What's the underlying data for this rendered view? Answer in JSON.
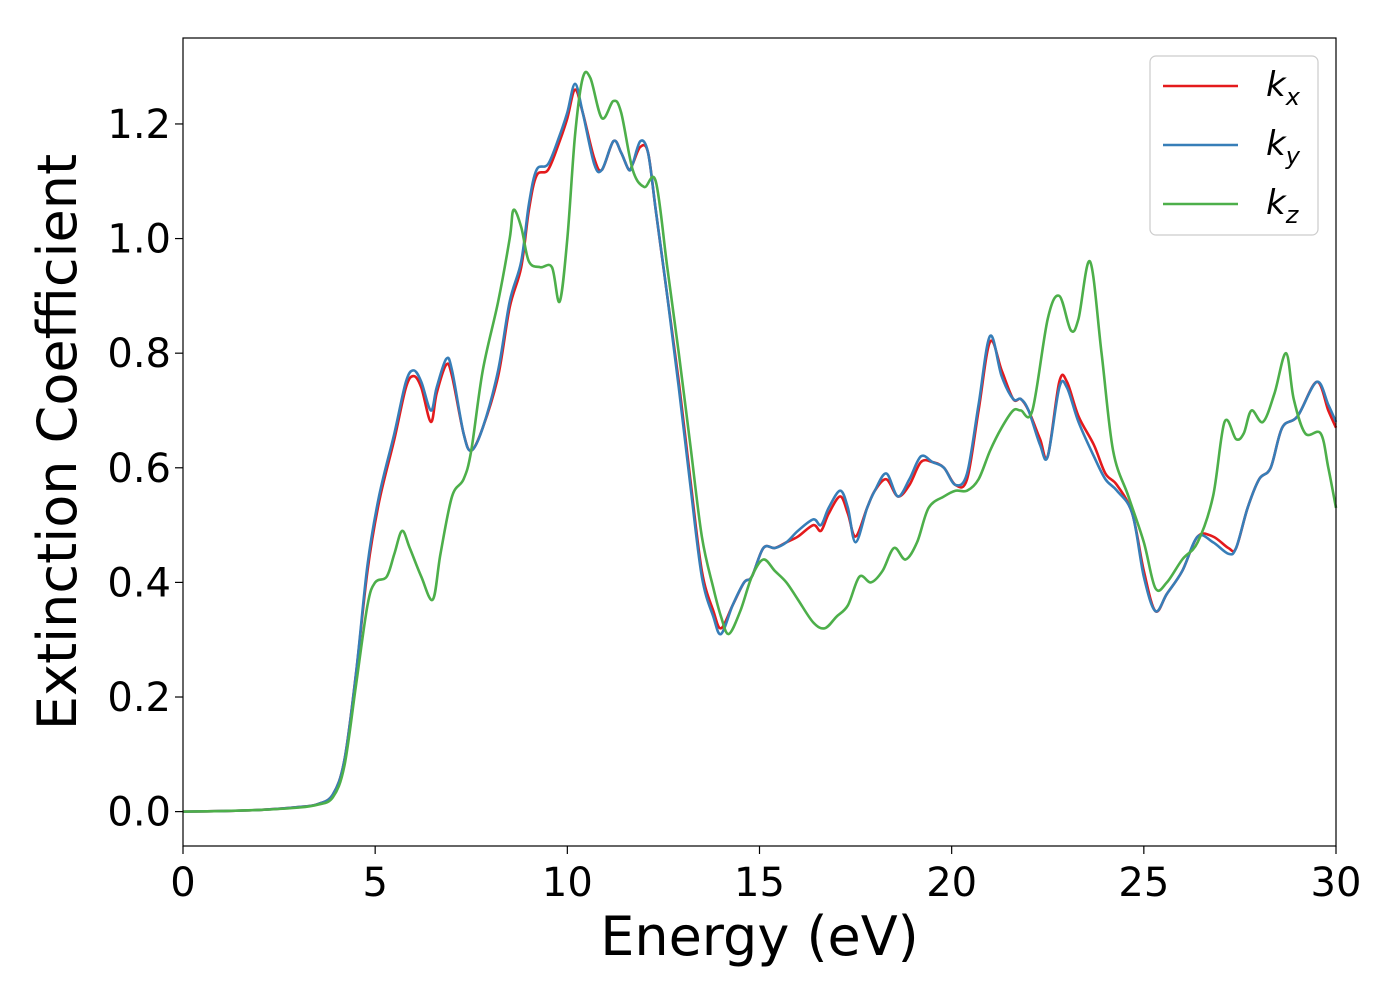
{
  "chart_data": {
    "type": "line",
    "xlabel": "Energy (eV)",
    "ylabel": "Extinction Coefficient",
    "xlim": [
      0,
      30
    ],
    "ylim": [
      -0.06,
      1.35
    ],
    "xticks": [
      0,
      5,
      10,
      15,
      20,
      25,
      30
    ],
    "yticks": [
      0.0,
      0.2,
      0.4,
      0.6,
      0.8,
      1.0,
      1.2
    ],
    "grid": false,
    "legend_position": "top-right",
    "series": [
      {
        "name": "k_x",
        "label_base": "k",
        "label_sub": "x",
        "color": "#e41a1c",
        "points": [
          [
            0,
            0.0
          ],
          [
            1,
            0.001
          ],
          [
            2,
            0.003
          ],
          [
            3,
            0.008
          ],
          [
            3.5,
            0.013
          ],
          [
            3.9,
            0.03
          ],
          [
            4.2,
            0.09
          ],
          [
            4.5,
            0.24
          ],
          [
            4.8,
            0.42
          ],
          [
            5.1,
            0.54
          ],
          [
            5.5,
            0.65
          ],
          [
            5.8,
            0.74
          ],
          [
            6.0,
            0.76
          ],
          [
            6.2,
            0.74
          ],
          [
            6.45,
            0.68
          ],
          [
            6.6,
            0.73
          ],
          [
            6.85,
            0.78
          ],
          [
            7.0,
            0.76
          ],
          [
            7.3,
            0.66
          ],
          [
            7.5,
            0.63
          ],
          [
            7.8,
            0.67
          ],
          [
            8.2,
            0.76
          ],
          [
            8.5,
            0.88
          ],
          [
            8.8,
            0.95
          ],
          [
            9.0,
            1.05
          ],
          [
            9.2,
            1.11
          ],
          [
            9.5,
            1.12
          ],
          [
            9.8,
            1.17
          ],
          [
            10.0,
            1.21
          ],
          [
            10.2,
            1.26
          ],
          [
            10.4,
            1.22
          ],
          [
            10.7,
            1.14
          ],
          [
            10.9,
            1.12
          ],
          [
            11.2,
            1.17
          ],
          [
            11.4,
            1.15
          ],
          [
            11.6,
            1.12
          ],
          [
            11.7,
            1.13
          ],
          [
            11.9,
            1.16
          ],
          [
            12.1,
            1.15
          ],
          [
            12.3,
            1.05
          ],
          [
            12.6,
            0.9
          ],
          [
            12.9,
            0.75
          ],
          [
            13.2,
            0.58
          ],
          [
            13.5,
            0.42
          ],
          [
            13.8,
            0.35
          ],
          [
            14.0,
            0.32
          ],
          [
            14.3,
            0.36
          ],
          [
            14.6,
            0.4
          ],
          [
            14.8,
            0.41
          ],
          [
            15.1,
            0.46
          ],
          [
            15.4,
            0.46
          ],
          [
            15.7,
            0.47
          ],
          [
            16.0,
            0.48
          ],
          [
            16.4,
            0.5
          ],
          [
            16.6,
            0.49
          ],
          [
            16.8,
            0.52
          ],
          [
            17.1,
            0.55
          ],
          [
            17.3,
            0.52
          ],
          [
            17.5,
            0.48
          ],
          [
            17.8,
            0.53
          ],
          [
            18.0,
            0.56
          ],
          [
            18.3,
            0.58
          ],
          [
            18.6,
            0.55
          ],
          [
            18.9,
            0.57
          ],
          [
            19.2,
            0.61
          ],
          [
            19.5,
            0.61
          ],
          [
            19.8,
            0.6
          ],
          [
            20.1,
            0.57
          ],
          [
            20.4,
            0.58
          ],
          [
            20.7,
            0.7
          ],
          [
            21.0,
            0.82
          ],
          [
            21.3,
            0.77
          ],
          [
            21.6,
            0.72
          ],
          [
            21.8,
            0.72
          ],
          [
            22.0,
            0.7
          ],
          [
            22.3,
            0.65
          ],
          [
            22.5,
            0.62
          ],
          [
            22.8,
            0.75
          ],
          [
            23.0,
            0.75
          ],
          [
            23.3,
            0.69
          ],
          [
            23.7,
            0.64
          ],
          [
            24.0,
            0.59
          ],
          [
            24.3,
            0.57
          ],
          [
            24.7,
            0.52
          ],
          [
            25.0,
            0.42
          ],
          [
            25.3,
            0.35
          ],
          [
            25.6,
            0.38
          ],
          [
            26.0,
            0.42
          ],
          [
            26.4,
            0.48
          ],
          [
            26.8,
            0.48
          ],
          [
            27.2,
            0.46
          ],
          [
            27.4,
            0.46
          ],
          [
            27.7,
            0.53
          ],
          [
            28.0,
            0.58
          ],
          [
            28.3,
            0.6
          ],
          [
            28.6,
            0.67
          ],
          [
            29.0,
            0.69
          ],
          [
            29.5,
            0.75
          ],
          [
            29.8,
            0.7
          ],
          [
            30.0,
            0.67
          ]
        ]
      },
      {
        "name": "k_y",
        "label_base": "k",
        "label_sub": "y",
        "color": "#377eb8",
        "points": [
          [
            0,
            0.0
          ],
          [
            1,
            0.001
          ],
          [
            2,
            0.003
          ],
          [
            3,
            0.008
          ],
          [
            3.5,
            0.013
          ],
          [
            3.9,
            0.03
          ],
          [
            4.2,
            0.09
          ],
          [
            4.5,
            0.24
          ],
          [
            4.8,
            0.43
          ],
          [
            5.1,
            0.55
          ],
          [
            5.5,
            0.66
          ],
          [
            5.8,
            0.75
          ],
          [
            6.0,
            0.77
          ],
          [
            6.2,
            0.75
          ],
          [
            6.45,
            0.7
          ],
          [
            6.6,
            0.74
          ],
          [
            6.85,
            0.79
          ],
          [
            7.0,
            0.77
          ],
          [
            7.3,
            0.66
          ],
          [
            7.5,
            0.63
          ],
          [
            7.8,
            0.67
          ],
          [
            8.2,
            0.77
          ],
          [
            8.5,
            0.89
          ],
          [
            8.8,
            0.96
          ],
          [
            9.0,
            1.06
          ],
          [
            9.2,
            1.12
          ],
          [
            9.5,
            1.13
          ],
          [
            9.8,
            1.18
          ],
          [
            10.0,
            1.22
          ],
          [
            10.2,
            1.27
          ],
          [
            10.4,
            1.22
          ],
          [
            10.7,
            1.13
          ],
          [
            10.9,
            1.12
          ],
          [
            11.2,
            1.17
          ],
          [
            11.4,
            1.15
          ],
          [
            11.6,
            1.12
          ],
          [
            11.7,
            1.13
          ],
          [
            11.9,
            1.17
          ],
          [
            12.1,
            1.15
          ],
          [
            12.3,
            1.05
          ],
          [
            12.6,
            0.9
          ],
          [
            12.9,
            0.74
          ],
          [
            13.2,
            0.57
          ],
          [
            13.5,
            0.41
          ],
          [
            13.8,
            0.34
          ],
          [
            14.0,
            0.31
          ],
          [
            14.3,
            0.36
          ],
          [
            14.6,
            0.4
          ],
          [
            14.8,
            0.41
          ],
          [
            15.1,
            0.46
          ],
          [
            15.4,
            0.46
          ],
          [
            15.7,
            0.47
          ],
          [
            16.0,
            0.49
          ],
          [
            16.4,
            0.51
          ],
          [
            16.6,
            0.5
          ],
          [
            16.8,
            0.53
          ],
          [
            17.1,
            0.56
          ],
          [
            17.3,
            0.53
          ],
          [
            17.5,
            0.47
          ],
          [
            17.8,
            0.53
          ],
          [
            18.0,
            0.56
          ],
          [
            18.3,
            0.59
          ],
          [
            18.6,
            0.55
          ],
          [
            18.9,
            0.58
          ],
          [
            19.2,
            0.62
          ],
          [
            19.5,
            0.61
          ],
          [
            19.8,
            0.6
          ],
          [
            20.1,
            0.57
          ],
          [
            20.4,
            0.59
          ],
          [
            20.7,
            0.71
          ],
          [
            21.0,
            0.83
          ],
          [
            21.3,
            0.76
          ],
          [
            21.6,
            0.72
          ],
          [
            21.8,
            0.72
          ],
          [
            22.0,
            0.7
          ],
          [
            22.3,
            0.64
          ],
          [
            22.5,
            0.62
          ],
          [
            22.8,
            0.74
          ],
          [
            23.0,
            0.74
          ],
          [
            23.3,
            0.68
          ],
          [
            23.7,
            0.62
          ],
          [
            24.0,
            0.58
          ],
          [
            24.3,
            0.56
          ],
          [
            24.7,
            0.52
          ],
          [
            25.0,
            0.41
          ],
          [
            25.3,
            0.35
          ],
          [
            25.6,
            0.38
          ],
          [
            26.0,
            0.42
          ],
          [
            26.4,
            0.48
          ],
          [
            26.8,
            0.47
          ],
          [
            27.2,
            0.45
          ],
          [
            27.4,
            0.46
          ],
          [
            27.7,
            0.53
          ],
          [
            28.0,
            0.58
          ],
          [
            28.3,
            0.6
          ],
          [
            28.6,
            0.67
          ],
          [
            29.0,
            0.69
          ],
          [
            29.5,
            0.75
          ],
          [
            29.8,
            0.71
          ],
          [
            30.0,
            0.68
          ]
        ]
      },
      {
        "name": "k_z",
        "label_base": "k",
        "label_sub": "z",
        "color": "#4daf4a",
        "points": [
          [
            0,
            0.0
          ],
          [
            1,
            0.001
          ],
          [
            2,
            0.003
          ],
          [
            3,
            0.007
          ],
          [
            3.5,
            0.012
          ],
          [
            3.9,
            0.025
          ],
          [
            4.2,
            0.08
          ],
          [
            4.5,
            0.22
          ],
          [
            4.8,
            0.36
          ],
          [
            5.0,
            0.4
          ],
          [
            5.3,
            0.41
          ],
          [
            5.5,
            0.45
          ],
          [
            5.7,
            0.49
          ],
          [
            5.9,
            0.46
          ],
          [
            6.2,
            0.41
          ],
          [
            6.5,
            0.37
          ],
          [
            6.7,
            0.45
          ],
          [
            7.0,
            0.55
          ],
          [
            7.3,
            0.58
          ],
          [
            7.5,
            0.63
          ],
          [
            7.8,
            0.77
          ],
          [
            8.2,
            0.89
          ],
          [
            8.5,
            1.0
          ],
          [
            8.6,
            1.05
          ],
          [
            8.8,
            1.02
          ],
          [
            9.0,
            0.96
          ],
          [
            9.3,
            0.95
          ],
          [
            9.6,
            0.95
          ],
          [
            9.8,
            0.89
          ],
          [
            10.0,
            1.0
          ],
          [
            10.2,
            1.18
          ],
          [
            10.4,
            1.28
          ],
          [
            10.6,
            1.28
          ],
          [
            10.9,
            1.21
          ],
          [
            11.2,
            1.24
          ],
          [
            11.4,
            1.22
          ],
          [
            11.7,
            1.12
          ],
          [
            12.0,
            1.09
          ],
          [
            12.3,
            1.1
          ],
          [
            12.6,
            0.95
          ],
          [
            12.9,
            0.8
          ],
          [
            13.2,
            0.64
          ],
          [
            13.5,
            0.48
          ],
          [
            13.8,
            0.39
          ],
          [
            14.0,
            0.34
          ],
          [
            14.2,
            0.31
          ],
          [
            14.5,
            0.35
          ],
          [
            14.8,
            0.41
          ],
          [
            15.1,
            0.44
          ],
          [
            15.4,
            0.42
          ],
          [
            15.7,
            0.4
          ],
          [
            16.0,
            0.37
          ],
          [
            16.4,
            0.33
          ],
          [
            16.7,
            0.32
          ],
          [
            17.0,
            0.34
          ],
          [
            17.3,
            0.36
          ],
          [
            17.6,
            0.41
          ],
          [
            17.9,
            0.4
          ],
          [
            18.2,
            0.42
          ],
          [
            18.5,
            0.46
          ],
          [
            18.8,
            0.44
          ],
          [
            19.1,
            0.47
          ],
          [
            19.4,
            0.53
          ],
          [
            19.8,
            0.55
          ],
          [
            20.1,
            0.56
          ],
          [
            20.4,
            0.56
          ],
          [
            20.7,
            0.58
          ],
          [
            21.0,
            0.63
          ],
          [
            21.3,
            0.67
          ],
          [
            21.6,
            0.7
          ],
          [
            21.8,
            0.7
          ],
          [
            22.1,
            0.7
          ],
          [
            22.5,
            0.86
          ],
          [
            22.8,
            0.9
          ],
          [
            23.1,
            0.84
          ],
          [
            23.3,
            0.86
          ],
          [
            23.6,
            0.96
          ],
          [
            23.9,
            0.8
          ],
          [
            24.2,
            0.63
          ],
          [
            24.6,
            0.55
          ],
          [
            25.0,
            0.47
          ],
          [
            25.3,
            0.39
          ],
          [
            25.6,
            0.4
          ],
          [
            26.0,
            0.44
          ],
          [
            26.4,
            0.47
          ],
          [
            26.8,
            0.55
          ],
          [
            27.1,
            0.68
          ],
          [
            27.4,
            0.65
          ],
          [
            27.6,
            0.66
          ],
          [
            27.8,
            0.7
          ],
          [
            28.1,
            0.68
          ],
          [
            28.4,
            0.73
          ],
          [
            28.7,
            0.8
          ],
          [
            28.9,
            0.72
          ],
          [
            29.2,
            0.66
          ],
          [
            29.6,
            0.66
          ],
          [
            29.8,
            0.6
          ],
          [
            30.0,
            0.53
          ]
        ]
      }
    ]
  }
}
